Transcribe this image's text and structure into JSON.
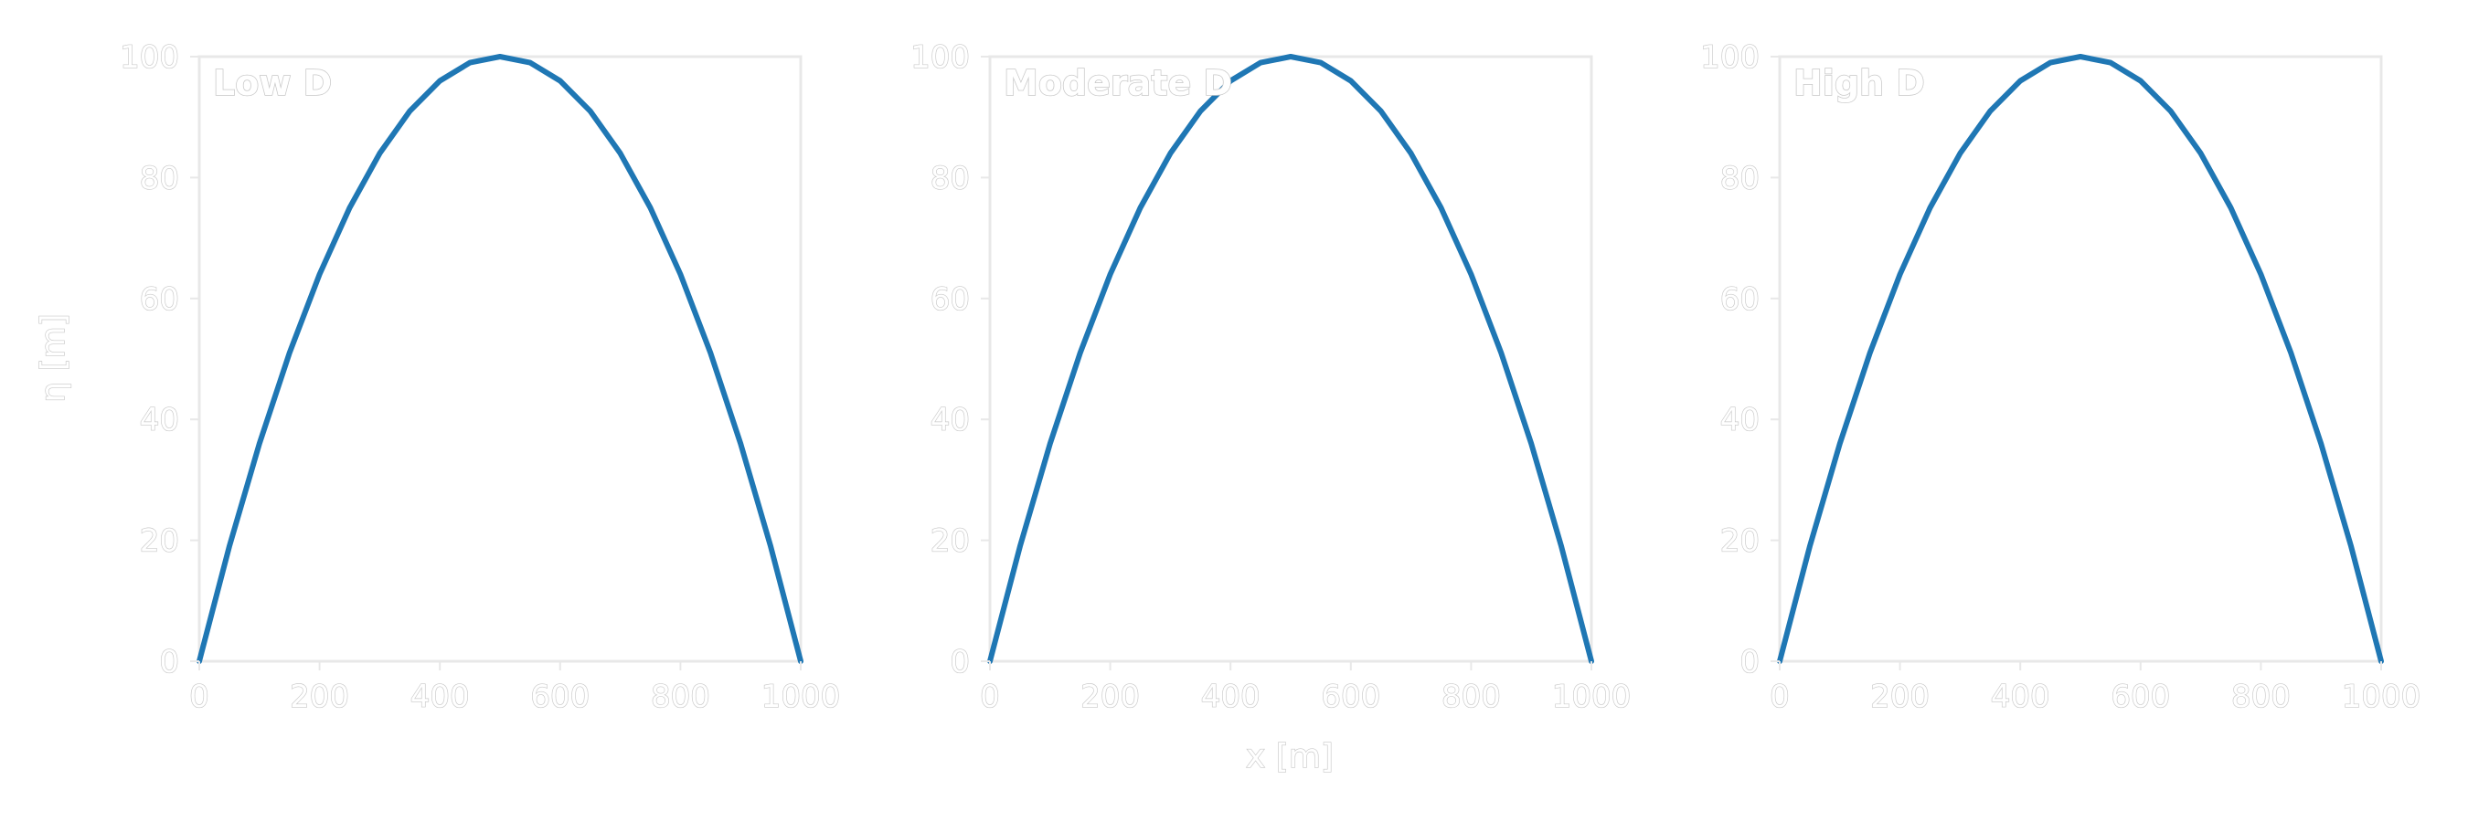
{
  "style": {
    "line_color": "#1f77b4"
  },
  "shared_labels": {
    "xlabel": "x [m]",
    "ylabel": "η [m]"
  },
  "chart_data": [
    {
      "type": "line",
      "title": "Low D",
      "xlim": [
        0,
        1000
      ],
      "ylim": [
        0,
        100
      ],
      "xticks": [
        "0",
        "200",
        "400",
        "600",
        "800",
        "1000"
      ],
      "yticks": [
        "0",
        "20",
        "40",
        "60",
        "80",
        "100"
      ],
      "x": [
        0,
        50,
        100,
        150,
        200,
        250,
        300,
        350,
        400,
        450,
        500,
        550,
        600,
        650,
        700,
        750,
        800,
        850,
        900,
        950,
        1000
      ],
      "series": [
        {
          "values": [
            0,
            19,
            36,
            51,
            64,
            75,
            84,
            91,
            96,
            99,
            100,
            99,
            96,
            91,
            84,
            75,
            64,
            51,
            36,
            19,
            0
          ]
        }
      ]
    },
    {
      "type": "line",
      "title": "Moderate D",
      "xlim": [
        0,
        1000
      ],
      "ylim": [
        0,
        100
      ],
      "xticks": [
        "0",
        "200",
        "400",
        "600",
        "800",
        "1000"
      ],
      "yticks": [
        "0",
        "20",
        "40",
        "60",
        "80",
        "100"
      ],
      "x": [
        0,
        50,
        100,
        150,
        200,
        250,
        300,
        350,
        400,
        450,
        500,
        550,
        600,
        650,
        700,
        750,
        800,
        850,
        900,
        950,
        1000
      ],
      "series": [
        {
          "values": [
            0,
            19,
            36,
            51,
            64,
            75,
            84,
            91,
            96,
            99,
            100,
            99,
            96,
            91,
            84,
            75,
            64,
            51,
            36,
            19,
            0
          ]
        }
      ]
    },
    {
      "type": "line",
      "title": "High D",
      "xlim": [
        0,
        1000
      ],
      "ylim": [
        0,
        100
      ],
      "xticks": [
        "0",
        "200",
        "400",
        "600",
        "800",
        "1000"
      ],
      "yticks": [
        "0",
        "20",
        "40",
        "60",
        "80",
        "100"
      ],
      "x": [
        0,
        50,
        100,
        150,
        200,
        250,
        300,
        350,
        400,
        450,
        500,
        550,
        600,
        650,
        700,
        750,
        800,
        850,
        900,
        950,
        1000
      ],
      "series": [
        {
          "values": [
            0,
            19,
            36,
            51,
            64,
            75,
            84,
            91,
            96,
            99,
            100,
            99,
            96,
            91,
            84,
            75,
            64,
            51,
            36,
            19,
            0
          ]
        }
      ]
    }
  ]
}
